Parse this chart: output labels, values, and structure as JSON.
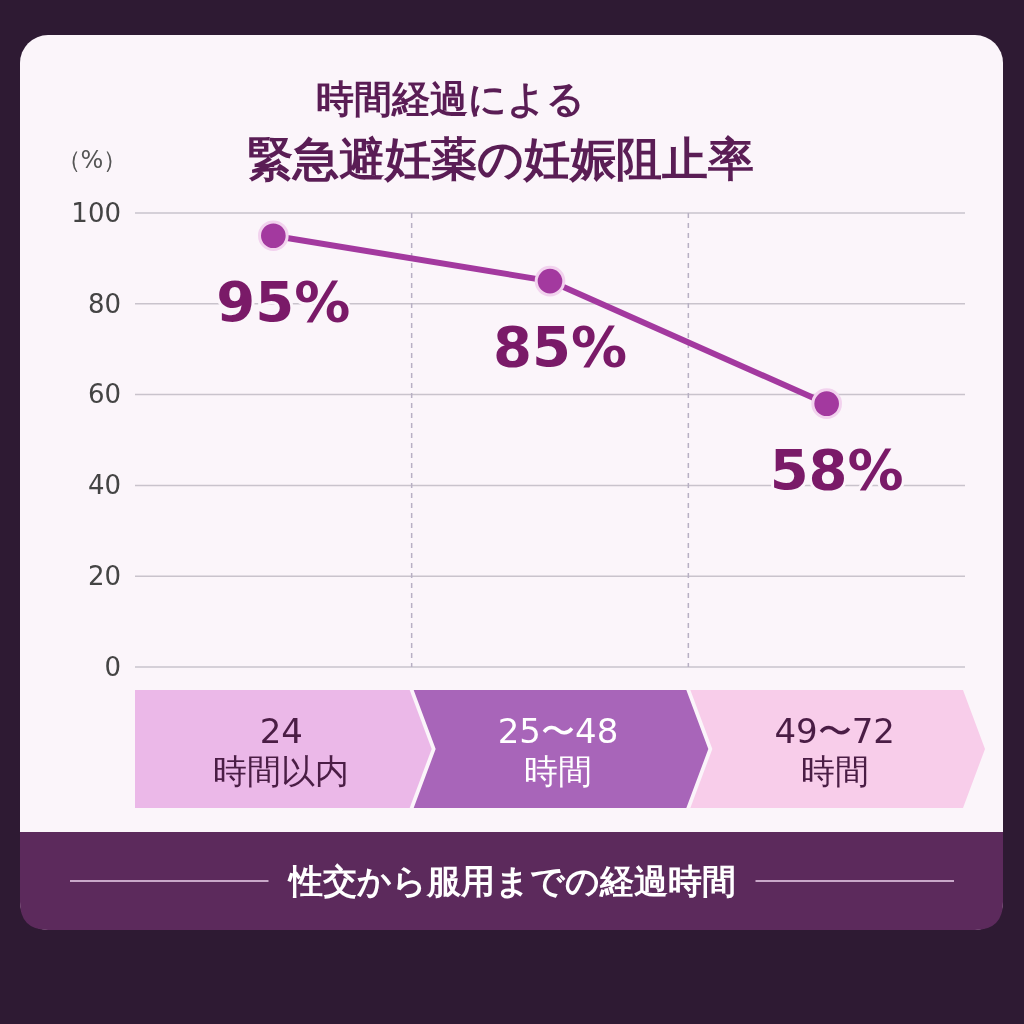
{
  "chart_data": {
    "type": "line",
    "title": "時間経過による",
    "subtitle": "緊急避妊薬の妊娠阻止率",
    "ylabel": "（%）",
    "xlabel": "性交から服用までの経過時間",
    "categories": [
      "24\n時間以内",
      "25〜48\n時間",
      "49〜72\n時間"
    ],
    "series": [
      {
        "color": "#a3399f",
        "values": [
          95,
          85,
          58
        ],
        "value_labels": [
          "95%",
          "85%",
          "58%"
        ]
      }
    ],
    "ylim": [
      0,
      100
    ],
    "yticks": [
      0,
      20,
      40,
      60,
      80,
      100
    ],
    "grid": true,
    "marker": "circle",
    "line_style": "solid"
  }
}
